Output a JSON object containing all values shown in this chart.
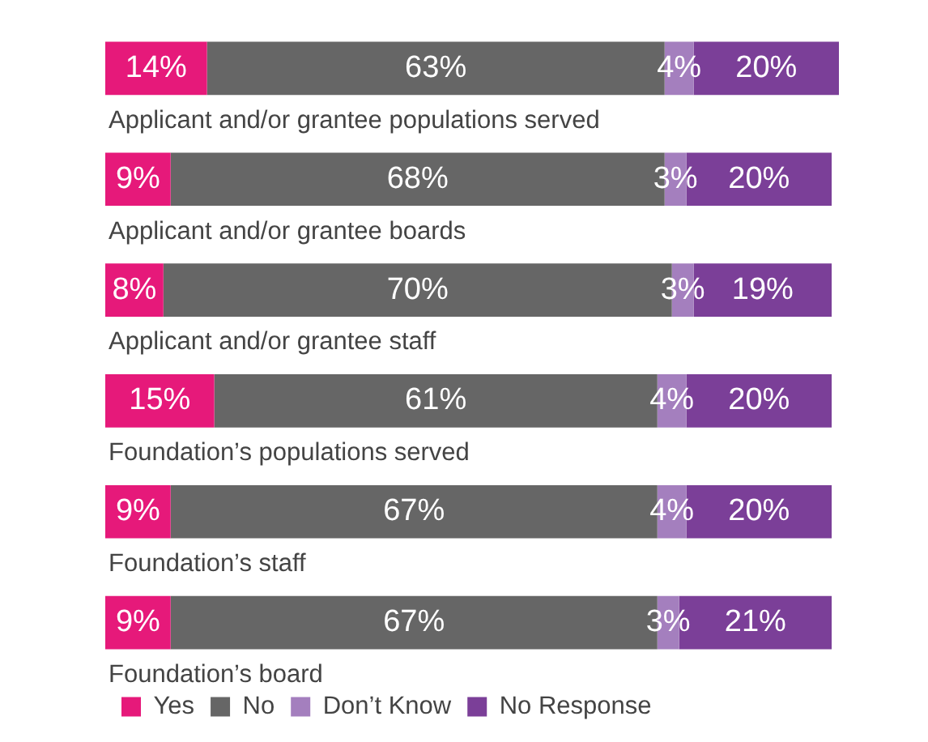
{
  "chart_data": {
    "type": "bar",
    "orientation": "horizontal",
    "stacked": true,
    "legend": "bottom left",
    "categories": [
      "Applicant and/or grantee populations served",
      "Applicant and/or grantee boards",
      "Applicant and/or grantee staff",
      "Foundation’s populations served",
      "Foundation’s staff",
      "Foundation’s board"
    ],
    "series": [
      {
        "name": "Yes",
        "color": "#e6197a",
        "values": [
          14,
          9,
          8,
          15,
          9,
          9
        ],
        "value_labels": [
          "14%",
          "9%",
          "8%",
          "15%",
          "9%",
          "9%"
        ]
      },
      {
        "name": "No",
        "color": "#666666",
        "values": [
          63,
          68,
          70,
          61,
          67,
          67
        ],
        "value_labels": [
          "63%",
          "68%",
          "70%",
          "61%",
          "67%",
          "67%"
        ]
      },
      {
        "name": "Don’t Know",
        "color": "#a47fbe",
        "values": [
          4,
          3,
          3,
          4,
          4,
          3
        ],
        "value_labels": [
          "4%",
          "3%",
          "3%",
          "4%",
          "4%",
          "3%"
        ]
      },
      {
        "name": "No Response",
        "color": "#7b3f98",
        "values": [
          20,
          20,
          19,
          20,
          20,
          21
        ],
        "value_labels": [
          "20%",
          "20%",
          "19%",
          "20%",
          "20%",
          "21%"
        ]
      }
    ]
  }
}
